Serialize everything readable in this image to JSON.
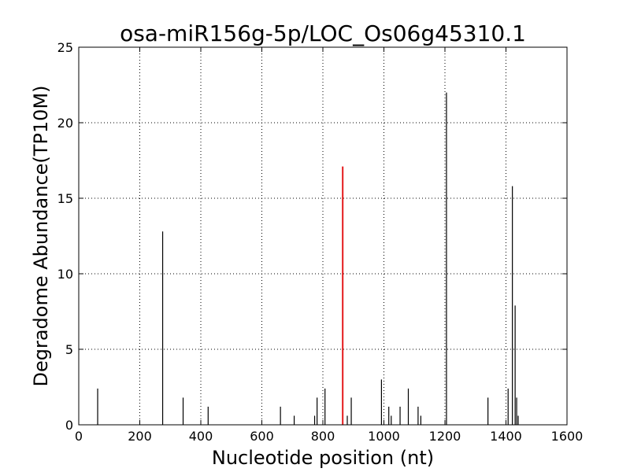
{
  "chart_data": {
    "type": "bar",
    "title": "osa-miR156g-5p/LOC_Os06g45310.1",
    "xlabel": "Nucleotide position (nt)",
    "ylabel": "Degradome Abundance(TP10M)",
    "xlim": [
      0,
      1600
    ],
    "ylim": [
      0,
      25
    ],
    "xticks": [
      "0",
      "200",
      "400",
      "600",
      "800",
      "1000",
      "1200",
      "1400",
      "1600"
    ],
    "yticks": [
      "0",
      "5",
      "10",
      "15",
      "20",
      "25"
    ],
    "grid": true,
    "series": [
      {
        "color": "#000000",
        "points": [
          {
            "x": 62,
            "y": 2.4
          },
          {
            "x": 275,
            "y": 12.8
          },
          {
            "x": 342,
            "y": 1.8
          },
          {
            "x": 424,
            "y": 1.2
          },
          {
            "x": 661,
            "y": 1.2
          },
          {
            "x": 706,
            "y": 0.6
          },
          {
            "x": 773,
            "y": 0.6
          },
          {
            "x": 781,
            "y": 1.8
          },
          {
            "x": 807,
            "y": 2.4
          },
          {
            "x": 880,
            "y": 0.6
          },
          {
            "x": 893,
            "y": 1.8
          },
          {
            "x": 992,
            "y": 3.0
          },
          {
            "x": 1016,
            "y": 1.2
          },
          {
            "x": 1024,
            "y": 0.6
          },
          {
            "x": 1053,
            "y": 1.2
          },
          {
            "x": 1080,
            "y": 2.4
          },
          {
            "x": 1112,
            "y": 1.2
          },
          {
            "x": 1121,
            "y": 0.6
          },
          {
            "x": 1205,
            "y": 22.0
          },
          {
            "x": 1341,
            "y": 1.8
          },
          {
            "x": 1407,
            "y": 2.4
          },
          {
            "x": 1421,
            "y": 15.8
          },
          {
            "x": 1430,
            "y": 7.9
          },
          {
            "x": 1435,
            "y": 1.8
          },
          {
            "x": 1440,
            "y": 0.6
          }
        ]
      },
      {
        "color": "#e41a1c",
        "points": [
          {
            "x": 865,
            "y": 17.1
          }
        ]
      }
    ]
  }
}
